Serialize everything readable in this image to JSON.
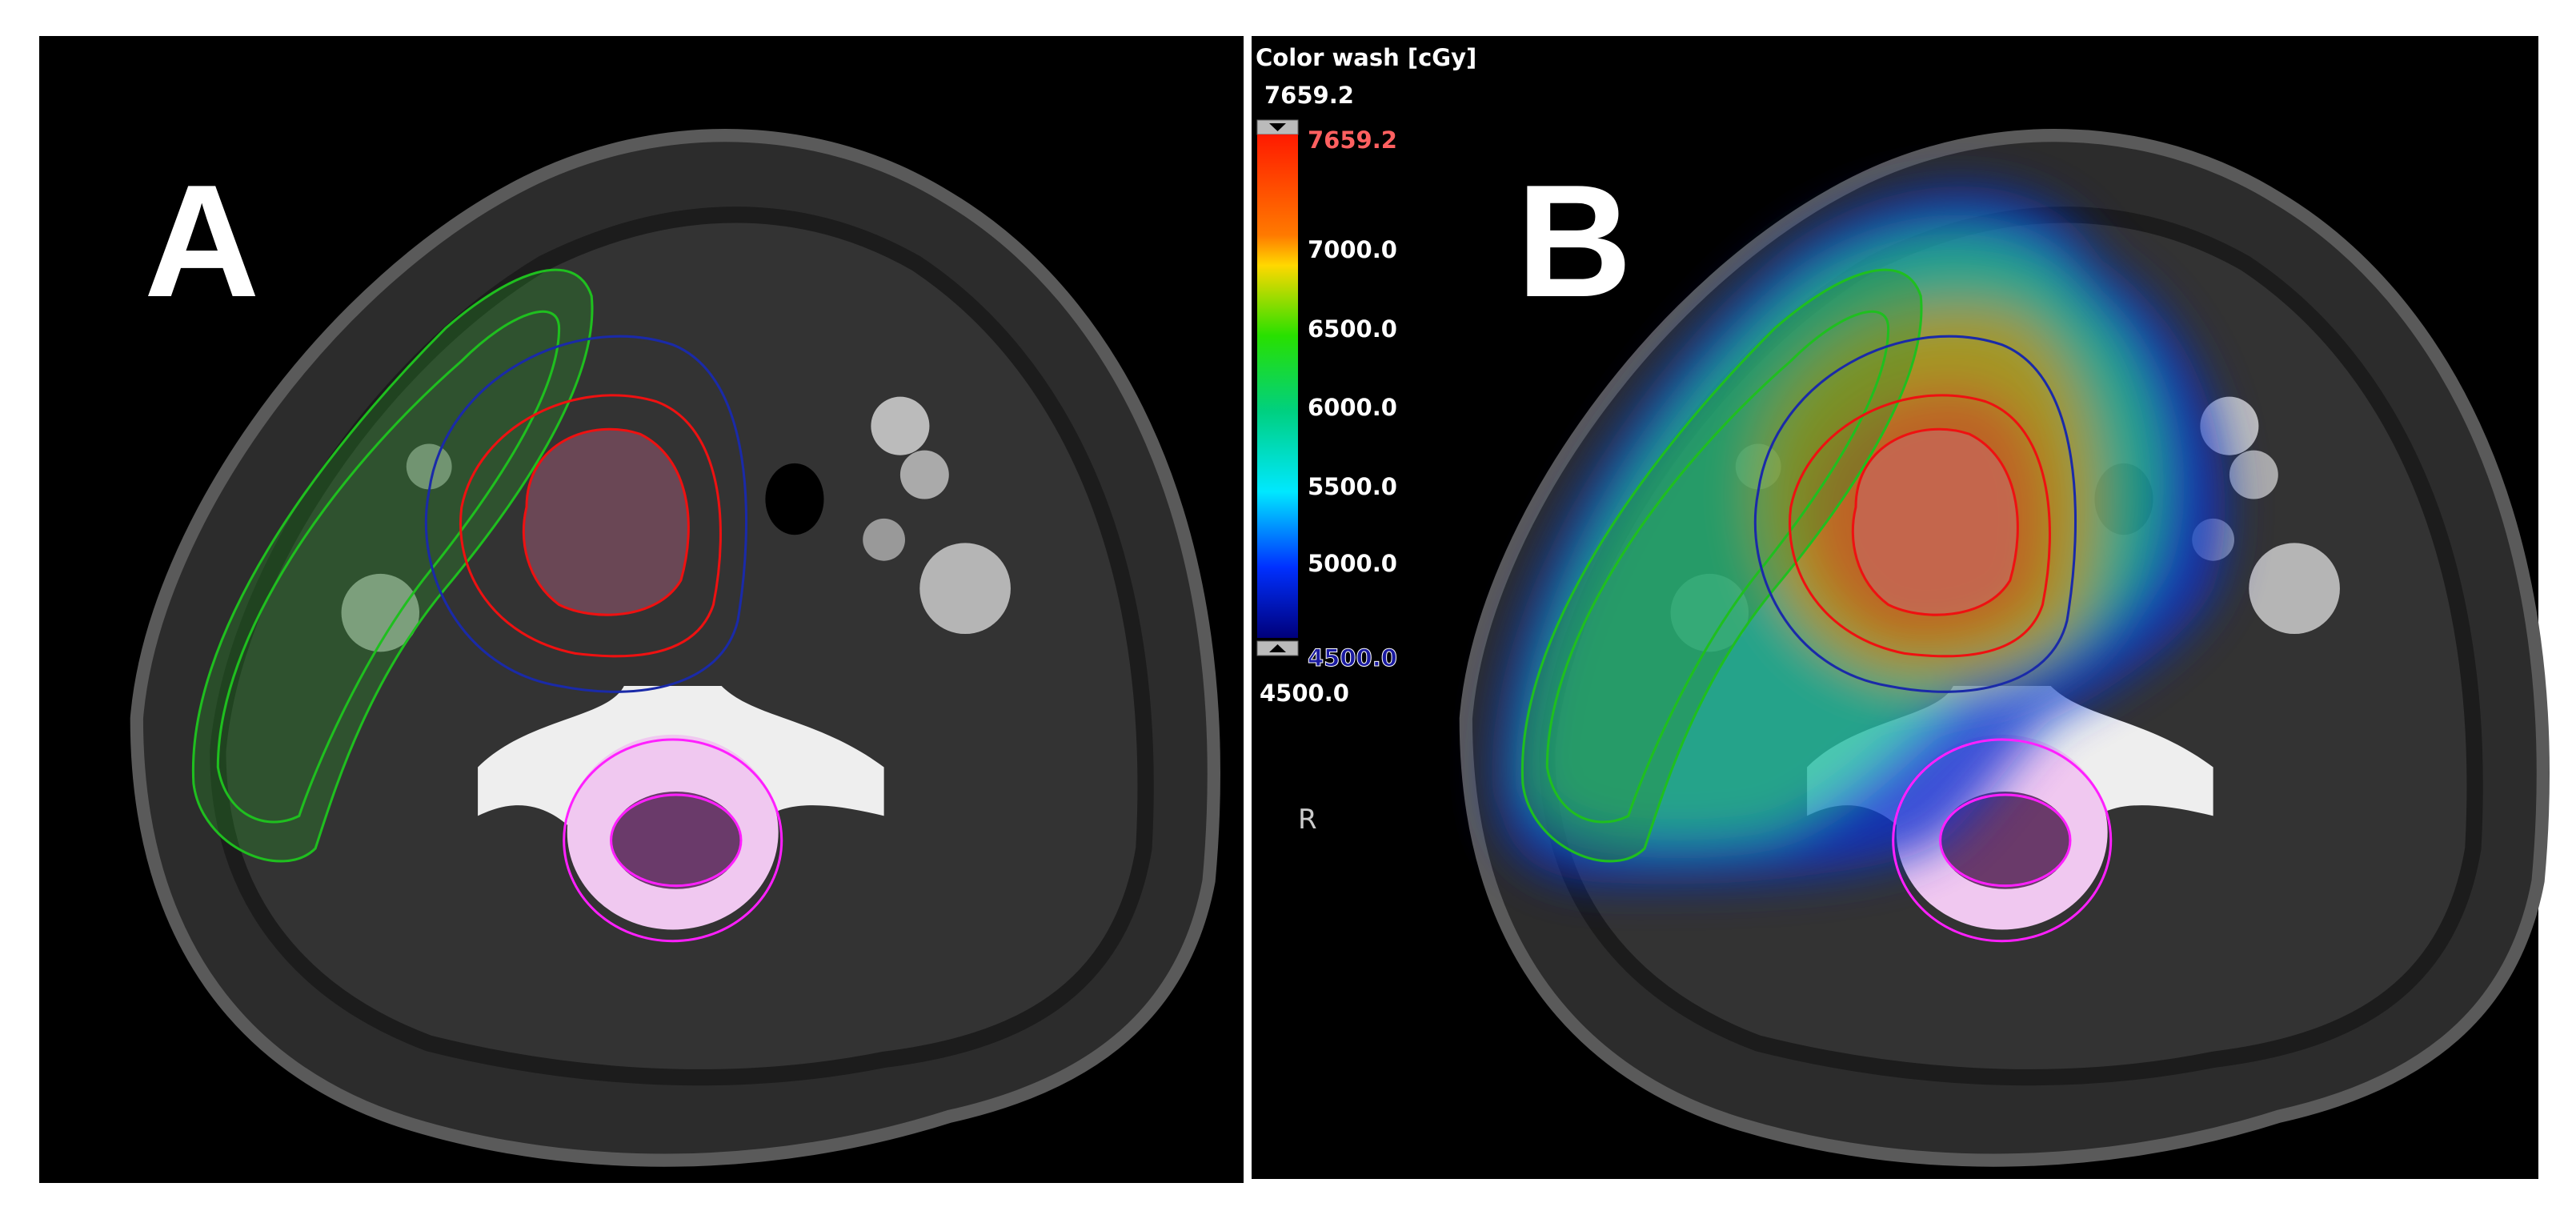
{
  "panels": [
    {
      "label": "A"
    },
    {
      "label": "B"
    }
  ],
  "legend": {
    "title": "Color wash [cGy]",
    "max": "7659.2",
    "max_marker": "7659.2",
    "ticks": [
      "7000.0",
      "6500.0",
      "6000.0",
      "5500.0",
      "5000.0"
    ],
    "min_marker": "4500.0",
    "min": "4500.0"
  },
  "orientation": "R"
}
